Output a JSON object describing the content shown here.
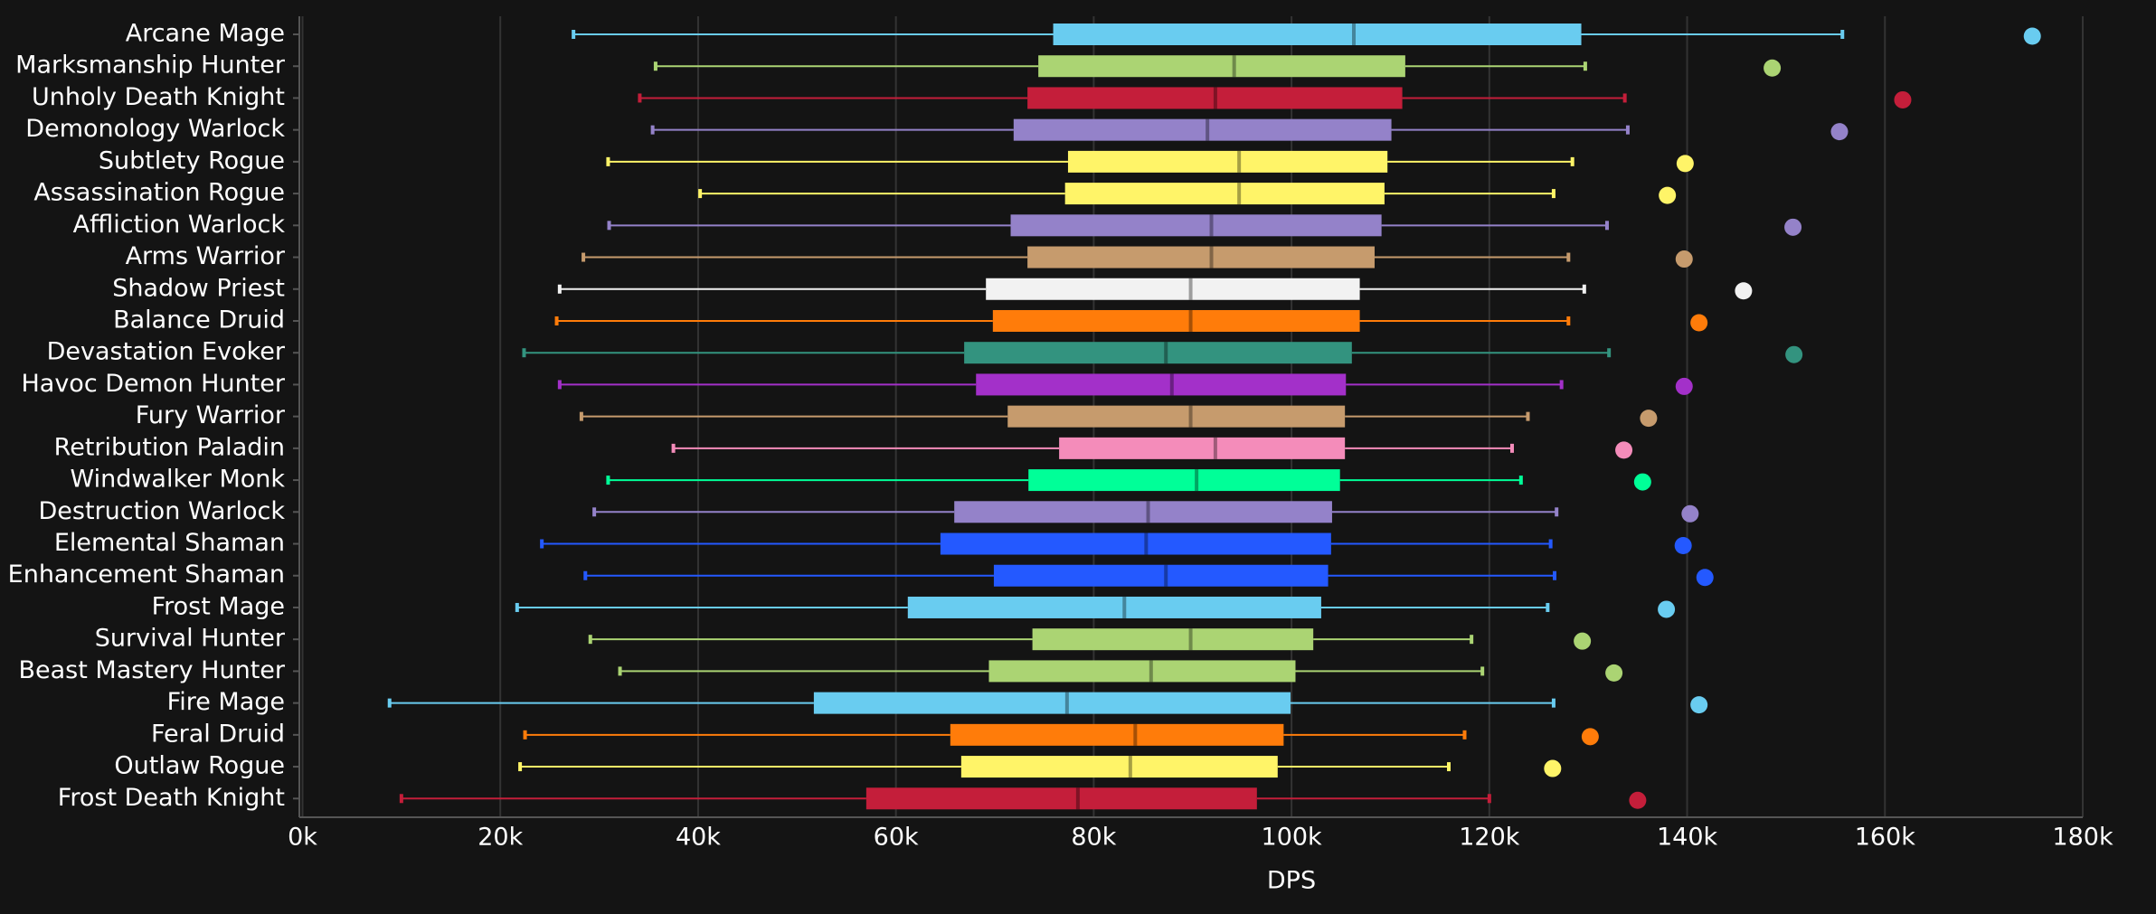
{
  "chart_data": {
    "type": "box",
    "x_label": "DPS",
    "categories": [
      "Arcane Mage",
      "Marksmanship Hunter",
      "Unholy Death Knight",
      "Demonology Warlock",
      "Subtlety Rogue",
      "Assassination Rogue",
      "Affliction Warlock",
      "Arms Warrior",
      "Shadow Priest",
      "Balance Druid",
      "Devastation Evoker",
      "Havoc Demon Hunter",
      "Fury Warrior",
      "Retribution Paladin",
      "Windwalker Monk",
      "Destruction Warlock",
      "Elemental Shaman",
      "Enhancement Shaman",
      "Frost Mage",
      "Survival Hunter",
      "Beast Mastery Hunter",
      "Fire Mage",
      "Feral Druid",
      "Outlaw Rogue",
      "Frost Death Knight"
    ],
    "colors": [
      "#69ccf0",
      "#abd473",
      "#c41e3a",
      "#9482c9",
      "#fff468",
      "#fff468",
      "#9482c9",
      "#c69b6d",
      "#f2f2f2",
      "#ff7c0a",
      "#33937f",
      "#a330c9",
      "#c69b6d",
      "#f48cba",
      "#00ff98",
      "#9482c9",
      "#2459ff",
      "#2459ff",
      "#69ccf0",
      "#abd473",
      "#abd473",
      "#69ccf0",
      "#ff7c0a",
      "#fff468",
      "#c41e3a"
    ],
    "low": [
      27400,
      35700,
      34100,
      35400,
      30900,
      40200,
      31000,
      28400,
      26000,
      25700,
      22400,
      26000,
      28200,
      37500,
      30900,
      29500,
      24200,
      28600,
      21700,
      29100,
      32100,
      8800,
      22500,
      22000,
      10000
    ],
    "q1": [
      75900,
      74400,
      73300,
      71900,
      77400,
      77100,
      71600,
      73300,
      69100,
      69800,
      66900,
      68100,
      71300,
      76500,
      73400,
      65900,
      64500,
      69900,
      61200,
      73800,
      69400,
      51700,
      65500,
      66600,
      57000
    ],
    "median": [
      106300,
      94200,
      92300,
      91500,
      94700,
      94700,
      91900,
      91900,
      89800,
      89800,
      87300,
      87900,
      89800,
      92300,
      90400,
      85500,
      85300,
      87300,
      83100,
      89800,
      85800,
      77300,
      84200,
      83700,
      78400
    ],
    "q3": [
      129300,
      111500,
      111200,
      110100,
      109700,
      109400,
      109100,
      108400,
      106900,
      106900,
      106100,
      105500,
      105400,
      105400,
      104900,
      104100,
      104000,
      103700,
      103000,
      102200,
      100400,
      99900,
      99200,
      98600,
      96500
    ],
    "high": [
      155700,
      129700,
      133700,
      134000,
      128400,
      126500,
      131900,
      128000,
      129600,
      128000,
      132100,
      127300,
      123900,
      122300,
      123200,
      126800,
      126200,
      126600,
      125900,
      118200,
      119300,
      126500,
      117500,
      115900,
      120000
    ],
    "point": [
      174900,
      148600,
      161800,
      155400,
      139800,
      138000,
      150700,
      139700,
      145700,
      141200,
      150800,
      139700,
      136100,
      133600,
      135500,
      140300,
      139600,
      141800,
      137900,
      129400,
      132600,
      141200,
      130200,
      126400,
      135000
    ],
    "xlim": [
      0,
      180000
    ],
    "xticks": [
      {
        "value": 0,
        "label": "0k"
      },
      {
        "value": 20000,
        "label": "20k"
      },
      {
        "value": 40000,
        "label": "40k"
      },
      {
        "value": 60000,
        "label": "60k"
      },
      {
        "value": 80000,
        "label": "80k"
      },
      {
        "value": 100000,
        "label": "100k"
      },
      {
        "value": 120000,
        "label": "120k"
      },
      {
        "value": 140000,
        "label": "140k"
      },
      {
        "value": 160000,
        "label": "160k"
      },
      {
        "value": 180000,
        "label": "180k"
      }
    ],
    "grid": true
  }
}
